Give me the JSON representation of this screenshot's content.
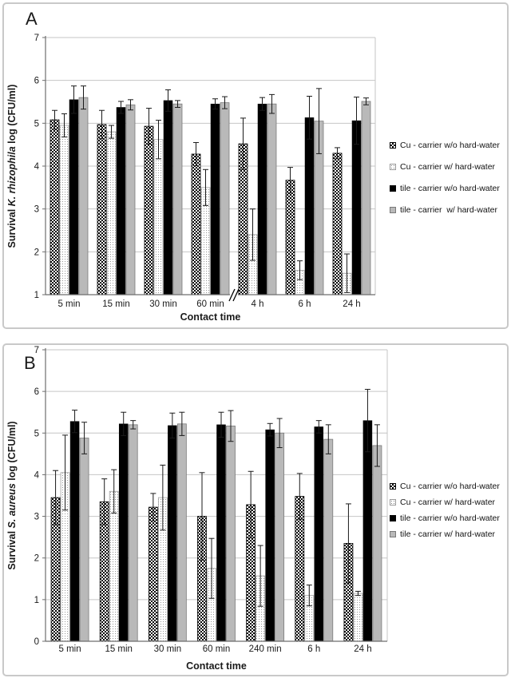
{
  "colors": {
    "background": "#ffffff",
    "panel_border": "#c9c9c9",
    "grid_line": "#c6c6c6",
    "axis_line": "#6e6e6e",
    "error_bar": "#1a1a1a",
    "text": "#1a1a1a",
    "gray_fill": "#b9b9b9",
    "gray_stroke": "#7a7a7a",
    "dotted_stroke": "#a0a0a0",
    "dot_color": "#7a7a7a",
    "checker_black": "#000000"
  },
  "panels": [
    {
      "label": "A",
      "chart_data": {
        "type": "bar",
        "title": "",
        "xlabel": "Contact time",
        "ylabel": {
          "prefix": "Survival ",
          "italic": "K. rhizophila",
          "suffix": " log (CFU/ml)"
        },
        "ylim": [
          1,
          7
        ],
        "yticks": [
          1,
          2,
          3,
          4,
          5,
          6,
          7
        ],
        "grid": true,
        "legend_position": "right",
        "axis_break_after": "60 min",
        "axis_break_after_index": 3,
        "categories": [
          "5 min",
          "15 min",
          "30 min",
          "60 min",
          "4 h",
          "6 h",
          "24 h"
        ],
        "series": [
          {
            "name": "Cu - carrier w/o hard-water",
            "pattern": "checker",
            "values": [
              5.08,
              4.97,
              4.93,
              4.28,
              4.52,
              3.67,
              4.3
            ],
            "errors": [
              0.22,
              0.33,
              0.42,
              0.27,
              0.6,
              0.3,
              0.13
            ]
          },
          {
            "name": "Cu - carrier w/ hard-water",
            "pattern": "dotted",
            "values": [
              4.95,
              4.8,
              4.62,
              3.5,
              2.4,
              1.57,
              1.5
            ],
            "errors": [
              0.27,
              0.15,
              0.45,
              0.42,
              0.6,
              0.22,
              0.45
            ]
          },
          {
            "name": "tile - carrier w/o hard-water",
            "pattern": "black",
            "values": [
              5.55,
              5.37,
              5.53,
              5.45,
              5.45,
              5.13,
              5.06
            ],
            "errors": [
              0.32,
              0.14,
              0.25,
              0.12,
              0.15,
              0.5,
              0.55
            ]
          },
          {
            "name": "tile - carrier  w/ hard-water",
            "pattern": "gray",
            "values": [
              5.6,
              5.43,
              5.45,
              5.48,
              5.45,
              5.05,
              5.51
            ],
            "errors": [
              0.27,
              0.12,
              0.08,
              0.14,
              0.22,
              0.76,
              0.08
            ]
          }
        ]
      }
    },
    {
      "label": "B",
      "chart_data": {
        "type": "bar",
        "title": "",
        "xlabel": "Contact time",
        "ylabel": {
          "prefix": "Survival ",
          "italic": "S. aureus",
          "suffix": " log (CFU/ml)"
        },
        "ylim": [
          0,
          7
        ],
        "yticks": [
          0,
          1,
          2,
          3,
          4,
          5,
          6,
          7
        ],
        "grid": true,
        "legend_position": "right",
        "axis_break_after": null,
        "axis_break_after_index": null,
        "categories": [
          "5 min",
          "15 min",
          "30 min",
          "60 min",
          "240 min",
          "6 h",
          "24 h"
        ],
        "series": [
          {
            "name": "Cu - carrier w/o hard-water",
            "pattern": "checker",
            "values": [
              3.45,
              3.35,
              3.22,
              3.0,
              3.28,
              3.48,
              2.35
            ],
            "errors": [
              0.65,
              0.55,
              0.33,
              1.05,
              0.8,
              0.55,
              0.95
            ]
          },
          {
            "name": "Cu - carrier w/ hard-water",
            "pattern": "dotted",
            "values": [
              4.05,
              3.6,
              3.45,
              1.75,
              1.57,
              1.1,
              1.15
            ],
            "errors": [
              0.9,
              0.52,
              0.78,
              0.72,
              0.73,
              0.25,
              0.05
            ]
          },
          {
            "name": "tile - carrier w/o hard-water",
            "pattern": "black",
            "values": [
              5.28,
              5.22,
              5.18,
              5.2,
              5.08,
              5.15,
              5.3
            ],
            "errors": [
              0.27,
              0.28,
              0.3,
              0.3,
              0.15,
              0.15,
              0.75
            ]
          },
          {
            "name": "tile - carrier w/ hard-water",
            "pattern": "gray",
            "values": [
              4.88,
              5.2,
              5.22,
              5.17,
              5.0,
              4.85,
              4.7
            ],
            "errors": [
              0.38,
              0.1,
              0.28,
              0.37,
              0.35,
              0.35,
              0.5
            ]
          }
        ]
      }
    }
  ]
}
